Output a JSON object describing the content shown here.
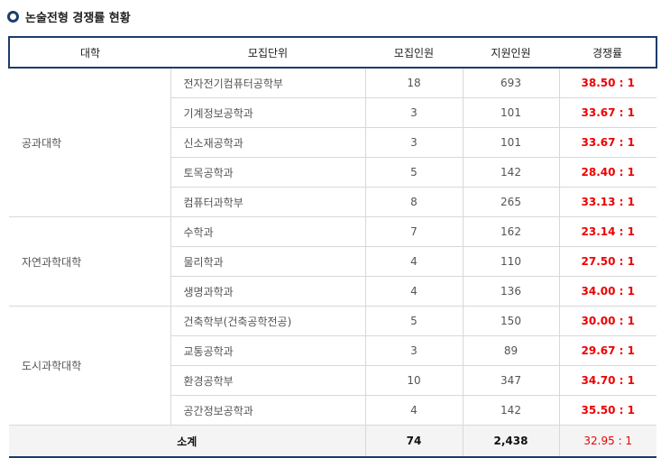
{
  "title": "논술전형 경쟁률 현황",
  "headers": [
    "대학",
    "모집단위",
    "모집인원",
    "지원인원",
    "경쟁률"
  ],
  "groups": [
    {
      "college": "공과대학",
      "rows": [
        [
          "전자전기컴퓨터공학부",
          "18",
          "693",
          "38.50 : 1"
        ],
        [
          "기계정보공학과",
          "3",
          "101",
          "33.67 : 1"
        ],
        [
          "신소재공학과",
          "3",
          "101",
          "33.67 : 1"
        ],
        [
          "토목공학과",
          "5",
          "142",
          "28.40 : 1"
        ],
        [
          "컴퓨터과학부",
          "8",
          "265",
          "33.13 : 1"
        ]
      ]
    },
    {
      "college": "자연과학대학",
      "rows": [
        [
          "수학과",
          "7",
          "162",
          "23.14 : 1"
        ],
        [
          "물리학과",
          "4",
          "110",
          "27.50 : 1"
        ],
        [
          "생명과학과",
          "4",
          "136",
          "34.00 : 1"
        ]
      ]
    },
    {
      "college": "도시과학대학",
      "rows": [
        [
          "건축학부(건축공학전공)",
          "5",
          "150",
          "30.00 : 1"
        ],
        [
          "교통공학과",
          "3",
          "89",
          "29.67 : 1"
        ],
        [
          "환경공학부",
          "10",
          "347",
          "34.70 : 1"
        ],
        [
          "공간정보공학과",
          "4",
          "142",
          "35.50 : 1"
        ]
      ]
    }
  ],
  "total": {
    "label": "소계",
    "quota": "74",
    "applicants": "2,438",
    "ratio": "32.95 : 1"
  }
}
